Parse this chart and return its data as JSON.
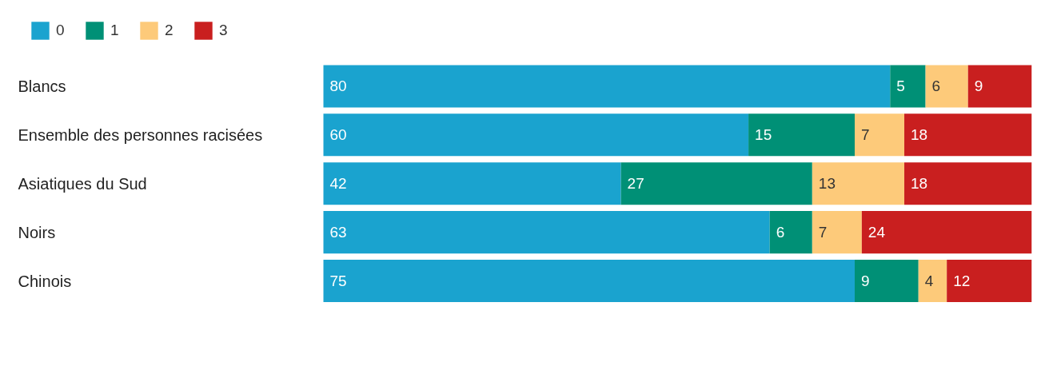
{
  "chart_data": {
    "type": "bar",
    "orientation": "horizontal",
    "stacked": true,
    "data_labels": true,
    "legend": "top left",
    "grid": false,
    "categories": [
      "Blancs",
      "Ensemble des personnes racisées",
      "Asiatiques du Sud",
      "Noirs",
      "Chinois"
    ],
    "series": [
      {
        "name": "0",
        "color": "#1aa3cf",
        "values": [
          80,
          60,
          42,
          63,
          75
        ]
      },
      {
        "name": "1",
        "color": "#009076",
        "values": [
          5,
          15,
          27,
          6,
          9
        ]
      },
      {
        "name": "2",
        "color": "#fdca7a",
        "values": [
          6,
          7,
          13,
          7,
          4
        ]
      },
      {
        "name": "3",
        "color": "#c91f1f",
        "values": [
          9,
          18,
          18,
          24,
          12
        ]
      }
    ]
  }
}
